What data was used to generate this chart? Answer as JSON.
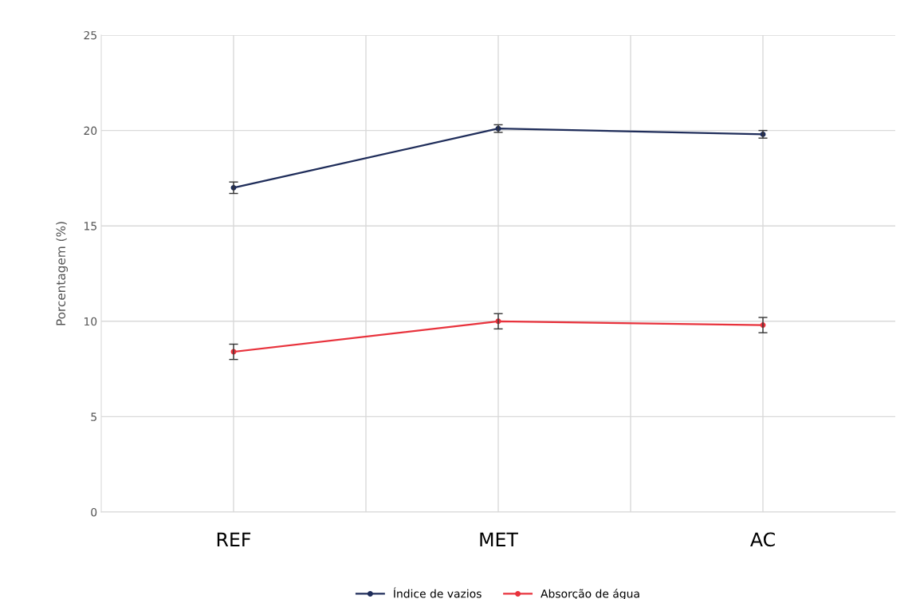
{
  "chart_data": {
    "type": "line",
    "ylabel": "Porcentagem (%)",
    "categories": [
      "REF",
      "MET",
      "AC"
    ],
    "series": [
      {
        "name": "Índice de vazios",
        "color": "#1f2d5a",
        "values": [
          17.0,
          20.1,
          19.8
        ],
        "errors": [
          0.3,
          0.2,
          0.2
        ]
      },
      {
        "name": "Absorção de água",
        "color": "#e8323c",
        "values": [
          8.4,
          10.0,
          9.8
        ],
        "errors": [
          0.4,
          0.4,
          0.4
        ]
      }
    ],
    "ylim": [
      0,
      25
    ],
    "yticks": [
      0,
      5,
      10,
      15,
      20,
      25
    ],
    "grid": true,
    "legend": "bottom",
    "marker": "circle",
    "line_style": "solid"
  }
}
